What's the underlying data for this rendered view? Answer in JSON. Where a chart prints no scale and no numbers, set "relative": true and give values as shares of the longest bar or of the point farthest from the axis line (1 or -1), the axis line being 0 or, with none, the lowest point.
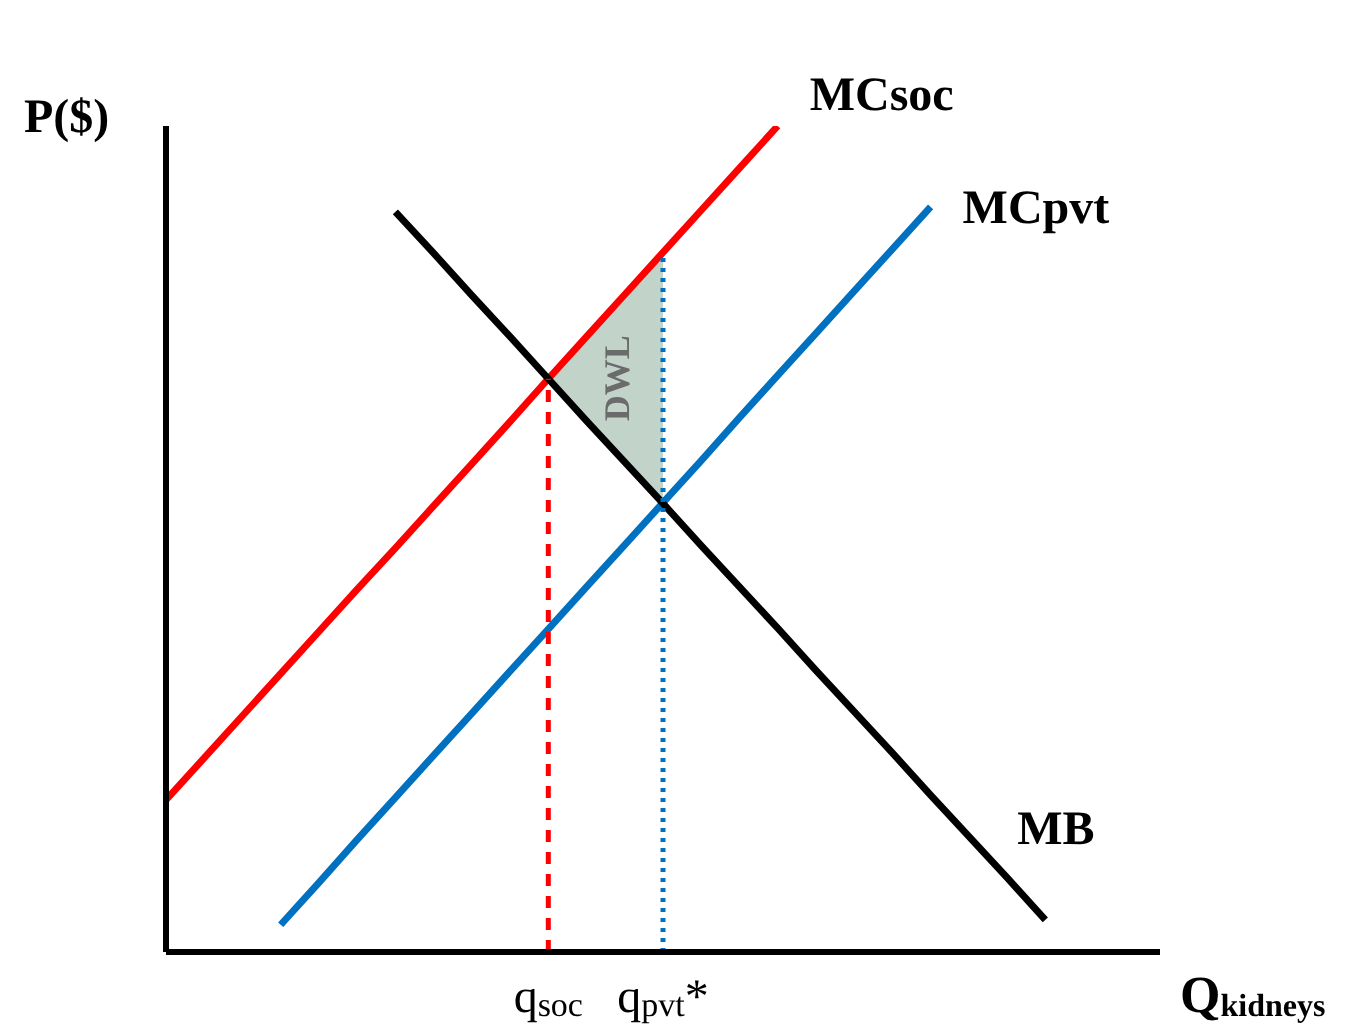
{
  "chart_data": {
    "type": "line",
    "relative": true,
    "xlabel": "Q$_{kidneys}$",
    "ylabel": "P($)",
    "grid": false,
    "legend": false,
    "marker": "none",
    "categories": [
      null,
      null,
      null,
      null,
      null,
      null,
      null,
      null,
      null,
      null,
      "q$_{soc}$",
      null,
      null,
      "q$_{pvt}$*",
      null,
      null,
      null,
      null,
      null,
      null,
      null,
      null,
      null,
      null,
      null,
      null
    ],
    "series": [
      {
        "name": "MCsoc",
        "color": "#ff0000",
        "values": [
          0.184,
          0.235,
          0.286,
          0.337,
          0.388,
          0.439,
          0.489,
          0.54,
          0.591,
          0.642,
          0.694,
          0.745,
          0.796,
          0.847,
          0.898,
          0.949,
          1,
          null,
          null,
          null,
          null,
          null,
          null,
          null,
          null,
          null
        ]
      },
      {
        "name": "MCpvt",
        "color": "#0070c0",
        "values": [
          null,
          null,
          null,
          0.033,
          0.084,
          0.136,
          0.187,
          0.238,
          0.289,
          0.34,
          0.391,
          0.442,
          0.493,
          0.544,
          0.595,
          0.647,
          0.698,
          0.749,
          0.8,
          0.851,
          0.902,
          null,
          null,
          null,
          null,
          null
        ]
      },
      {
        "name": "MB",
        "color": "#000000",
        "values": [
          null,
          null,
          null,
          null,
          null,
          null,
          0.896,
          0.846,
          0.795,
          0.745,
          0.694,
          0.643,
          0.593,
          0.543,
          0.492,
          0.442,
          0.392,
          0.341,
          0.291,
          0.241,
          0.19,
          0.14,
          0.09,
          0.039,
          null,
          null
        ]
      },
      {
        "type": "area",
        "color": "#b7cbc0",
        "values": [
          null,
          null,
          null,
          null,
          null,
          null,
          null,
          null,
          null,
          null,
          0.694,
          0.745,
          0.796,
          0.847,
          null,
          null,
          null,
          null,
          null,
          null,
          null,
          null,
          null,
          null,
          null,
          null
        ]
      }
    ],
    "ref_lines": [
      {
        "axis": "x",
        "value": "q$_{soc}$",
        "color": "#ff0000",
        "line_style": "dashed"
      },
      {
        "axis": "x",
        "value": "q$_{pvt}$*",
        "color": "#0070c0",
        "line_style": "dotted"
      }
    ],
    "annotations": [
      "DWL"
    ]
  }
}
